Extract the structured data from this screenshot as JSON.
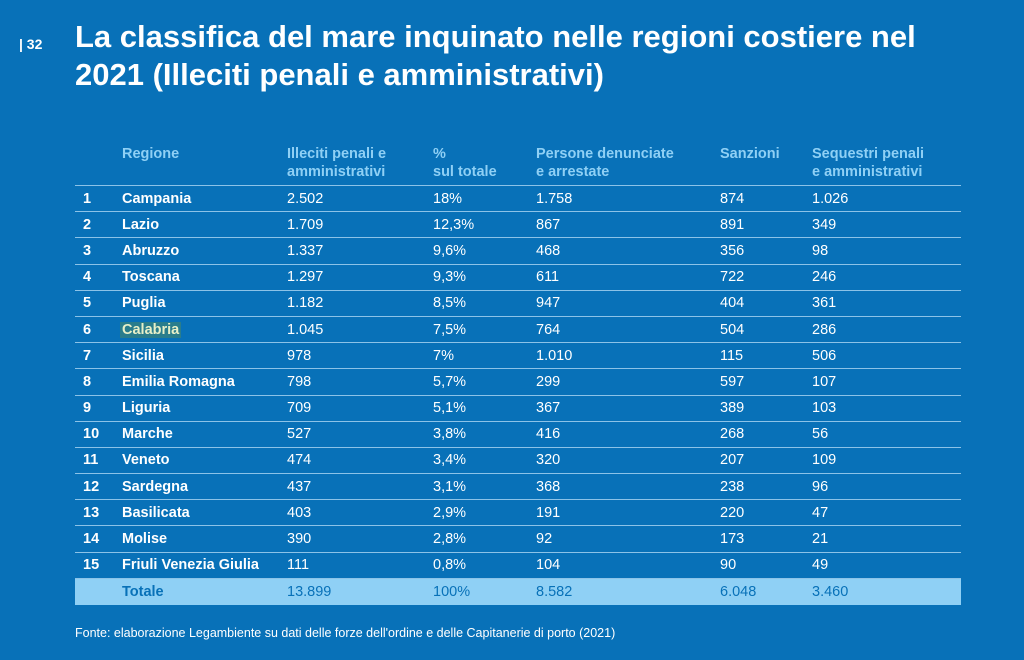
{
  "page_number": "| 32",
  "title": "La classifica del mare inquinato nelle regioni costiere nel 2021 (Illeciti penali e amministrativi)",
  "table": {
    "headers": {
      "rank": "",
      "region": "Regione",
      "illeciti_line1": "Illeciti penali e",
      "illeciti_line2": "amministrativi",
      "pct_line1": "%",
      "pct_line2": "sul totale",
      "persone_line1": "Persone denunciate",
      "persone_line2": "e arrestate",
      "sanzioni": "Sanzioni",
      "sequestri_line1": "Sequestri  penali",
      "sequestri_line2": "e amministrativi"
    },
    "rows": [
      {
        "rank": "1",
        "region": "Campania",
        "illeciti": "2.502",
        "pct": "18%",
        "persone": "1.758",
        "sanzioni": "874",
        "sequestri": "1.026"
      },
      {
        "rank": "2",
        "region": "Lazio",
        "illeciti": "1.709",
        "pct": "12,3%",
        "persone": "867",
        "sanzioni": "891",
        "sequestri": "349"
      },
      {
        "rank": "3",
        "region": "Abruzzo",
        "illeciti": "1.337",
        "pct": "9,6%",
        "persone": "468",
        "sanzioni": "356",
        "sequestri": "98"
      },
      {
        "rank": "4",
        "region": "Toscana",
        "illeciti": "1.297",
        "pct": "9,3%",
        "persone": "611",
        "sanzioni": "722",
        "sequestri": "246"
      },
      {
        "rank": "5",
        "region": "Puglia",
        "illeciti": "1.182",
        "pct": "8,5%",
        "persone": "947",
        "sanzioni": "404",
        "sequestri": "361"
      },
      {
        "rank": "6",
        "region": "Calabria",
        "illeciti": "1.045",
        "pct": "7,5%",
        "persone": "764",
        "sanzioni": "504",
        "sequestri": "286"
      },
      {
        "rank": "7",
        "region": "Sicilia",
        "illeciti": "978",
        "pct": "7%",
        "persone": "1.010",
        "sanzioni": "115",
        "sequestri": "506"
      },
      {
        "rank": "8",
        "region": "Emilia Romagna",
        "illeciti": "798",
        "pct": "5,7%",
        "persone": "299",
        "sanzioni": "597",
        "sequestri": "107"
      },
      {
        "rank": "9",
        "region": "Liguria",
        "illeciti": "709",
        "pct": "5,1%",
        "persone": "367",
        "sanzioni": "389",
        "sequestri": "103"
      },
      {
        "rank": "10",
        "region": "Marche",
        "illeciti": "527",
        "pct": "3,8%",
        "persone": "416",
        "sanzioni": "268",
        "sequestri": "56"
      },
      {
        "rank": "11",
        "region": "Veneto",
        "illeciti": "474",
        "pct": "3,4%",
        "persone": "320",
        "sanzioni": "207",
        "sequestri": "109"
      },
      {
        "rank": "12",
        "region": "Sardegna",
        "illeciti": "437",
        "pct": "3,1%",
        "persone": "368",
        "sanzioni": "238",
        "sequestri": "96"
      },
      {
        "rank": "13",
        "region": "Basilicata",
        "illeciti": "403",
        "pct": "2,9%",
        "persone": "191",
        "sanzioni": "220",
        "sequestri": "47"
      },
      {
        "rank": "14",
        "region": "Molise",
        "illeciti": "390",
        "pct": "2,8%",
        "persone": "92",
        "sanzioni": "173",
        "sequestri": "21"
      },
      {
        "rank": "15",
        "region": "Friuli Venezia Giulia",
        "illeciti": "111",
        "pct": "0,8%",
        "persone": "104",
        "sanzioni": "90",
        "sequestri": "49"
      }
    ],
    "total": {
      "label": "Totale",
      "illeciti": "13.899",
      "pct": "100%",
      "persone": "8.582",
      "sanzioni": "6.048",
      "sequestri": "3.460"
    }
  },
  "source": "Fonte: elaborazione Legambiente su dati delle forze dell'ordine e delle Capitanerie di porto (2021)",
  "colors": {
    "background": "#0871b8",
    "header_text": "#8fd0f5",
    "total_row_bg": "#8fd0f5",
    "highlight_bg": "#2a7d8c"
  }
}
